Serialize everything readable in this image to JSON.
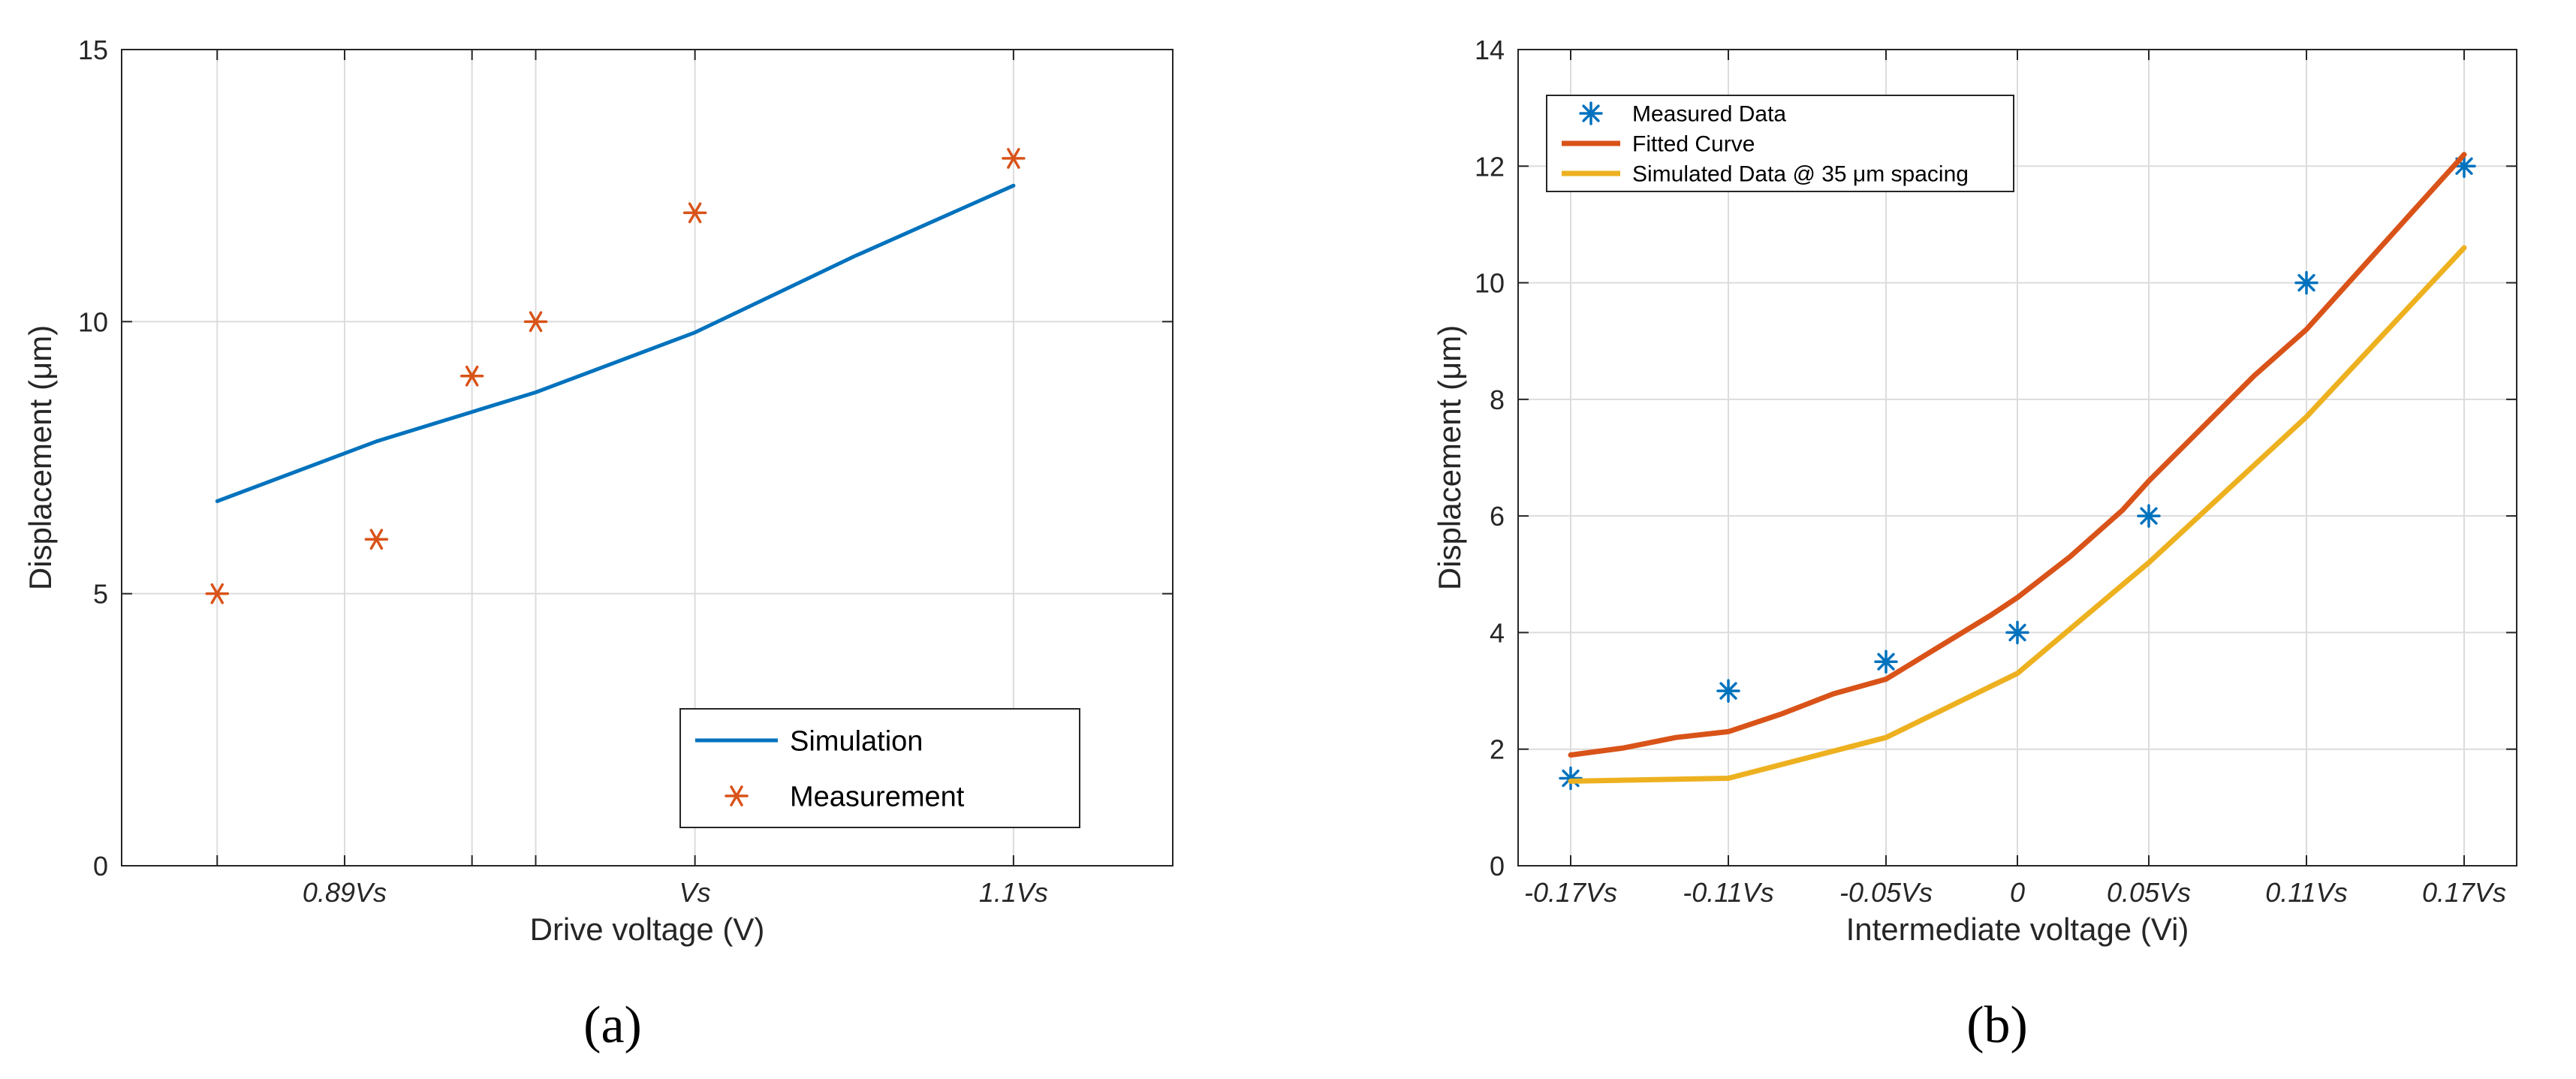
{
  "figure_labels": [
    "(a)",
    "(b)"
  ],
  "colors": {
    "blue": "#0072BD",
    "orange": "#D95319",
    "yellow": "#EDB120",
    "grid": "#dcdcdc",
    "axis": "#262626"
  },
  "chart_data": [
    {
      "type": "line",
      "panel_label": "(a)",
      "xlabel": "Drive voltage (V)",
      "ylabel": "Displacement (μm)",
      "xlim": [
        0.82,
        1.15
      ],
      "ylim": [
        0,
        15
      ],
      "grid": true,
      "x_ticks": [
        {
          "value": 0.85,
          "label": ""
        },
        {
          "value": 0.89,
          "label": "0.89Vs"
        },
        {
          "value": 0.93,
          "label": ""
        },
        {
          "value": 0.95,
          "label": ""
        },
        {
          "value": 1.0,
          "label": "Vs"
        },
        {
          "value": 1.1,
          "label": "1.1Vs"
        }
      ],
      "y_ticks": [
        {
          "value": 0,
          "label": "0"
        },
        {
          "value": 5,
          "label": "5"
        },
        {
          "value": 10,
          "label": "10"
        },
        {
          "value": 15,
          "label": "15"
        }
      ],
      "legend_position": "bottom-right",
      "series": [
        {
          "name": "Simulation",
          "kind": "line",
          "color": "#0072BD",
          "points": [
            [
              0.85,
              6.7
            ],
            [
              0.9,
              7.8
            ],
            [
              0.95,
              8.7
            ],
            [
              1.0,
              9.8
            ],
            [
              1.05,
              11.2
            ],
            [
              1.1,
              12.5
            ]
          ]
        },
        {
          "name": "Measurement",
          "kind": "marker",
          "color": "#D95319",
          "points": [
            [
              0.85,
              5
            ],
            [
              0.9,
              6
            ],
            [
              0.93,
              9
            ],
            [
              0.95,
              10
            ],
            [
              1.0,
              12
            ],
            [
              1.1,
              13
            ]
          ]
        }
      ]
    },
    {
      "type": "line",
      "panel_label": "(b)",
      "xlabel": "Intermediate voltage (Vi)",
      "ylabel": "Displacement (μm)",
      "xlim": [
        -0.19,
        0.19
      ],
      "ylim": [
        0,
        14
      ],
      "grid": true,
      "x_ticks": [
        {
          "value": -0.17,
          "label": "-0.17Vs"
        },
        {
          "value": -0.11,
          "label": "-0.11Vs"
        },
        {
          "value": -0.05,
          "label": "-0.05Vs"
        },
        {
          "value": 0,
          "label": "0"
        },
        {
          "value": 0.05,
          "label": "0.05Vs"
        },
        {
          "value": 0.11,
          "label": "0.11Vs"
        },
        {
          "value": 0.17,
          "label": "0.17Vs"
        }
      ],
      "y_ticks": [
        {
          "value": 0,
          "label": "0"
        },
        {
          "value": 2,
          "label": "2"
        },
        {
          "value": 4,
          "label": "4"
        },
        {
          "value": 6,
          "label": "6"
        },
        {
          "value": 8,
          "label": "8"
        },
        {
          "value": 10,
          "label": "10"
        },
        {
          "value": 12,
          "label": "12"
        },
        {
          "value": 14,
          "label": "14"
        }
      ],
      "legend_position": "top-left",
      "series": [
        {
          "name": "Measured Data",
          "kind": "marker",
          "color": "#0072BD",
          "points": [
            [
              -0.17,
              1.5
            ],
            [
              -0.11,
              3
            ],
            [
              -0.05,
              3.5
            ],
            [
              0,
              4
            ],
            [
              0.05,
              6
            ],
            [
              0.11,
              10
            ],
            [
              0.17,
              12
            ]
          ]
        },
        {
          "name": "Fitted Curve",
          "kind": "line",
          "color": "#D95319",
          "points": [
            [
              -0.17,
              1.9
            ],
            [
              -0.15,
              2.02
            ],
            [
              -0.13,
              2.2
            ],
            [
              -0.11,
              2.3
            ],
            [
              -0.09,
              2.6
            ],
            [
              -0.07,
              2.95
            ],
            [
              -0.05,
              3.2
            ],
            [
              -0.03,
              3.75
            ],
            [
              -0.01,
              4.3
            ],
            [
              0,
              4.6
            ],
            [
              0.02,
              5.3
            ],
            [
              0.04,
              6.1
            ],
            [
              0.05,
              6.6
            ],
            [
              0.07,
              7.5
            ],
            [
              0.09,
              8.4
            ],
            [
              0.11,
              9.2
            ],
            [
              0.13,
              10.2
            ],
            [
              0.15,
              11.2
            ],
            [
              0.17,
              12.2
            ]
          ]
        },
        {
          "name": "Simulated Data @ 35 μm spacing",
          "kind": "line",
          "color": "#EDB120",
          "points": [
            [
              -0.17,
              1.45
            ],
            [
              -0.11,
              1.5
            ],
            [
              -0.05,
              2.2
            ],
            [
              0,
              3.3
            ],
            [
              0.05,
              5.2
            ],
            [
              0.11,
              7.7
            ],
            [
              0.17,
              10.6
            ]
          ]
        }
      ]
    }
  ]
}
